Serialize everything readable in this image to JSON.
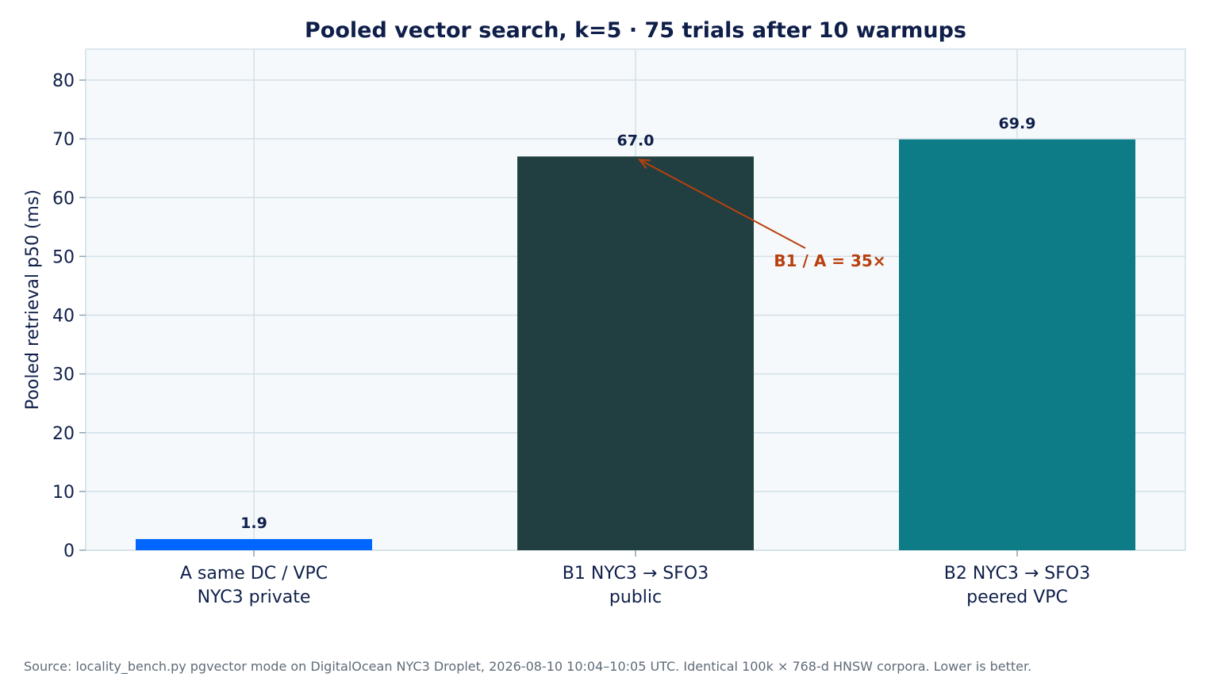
{
  "chart_data": {
    "type": "bar",
    "title": "Pooled vector search, k=5  ·  75 trials after 10 warmups",
    "ylabel": "Pooled retrieval p50 (ms)",
    "xlabel": "",
    "ylim": [
      0,
      85
    ],
    "yticks": [
      0,
      10,
      20,
      30,
      40,
      50,
      60,
      70,
      80
    ],
    "grid": true,
    "categories": [
      [
        "A  same DC / VPC",
        "NYC3 private"
      ],
      [
        "B1  NYC3 → SFO3",
        "public"
      ],
      [
        "B2  NYC3 → SFO3",
        "peered VPC"
      ]
    ],
    "values": [
      1.9,
      67.0,
      69.9
    ],
    "value_labels": [
      "1.9",
      "67.0",
      "69.9"
    ],
    "colors": [
      "#0066ff",
      "#213f40",
      "#0e7c86"
    ],
    "annotation": {
      "text": "B1 / A = 35×",
      "points_to_category": 1,
      "points_to_value": 67.0,
      "color": "#b8400e"
    }
  },
  "footer": {
    "source": "Source: locality_bench.py pgvector mode on DigitalOcean NYC3 Droplet, 2026-08-10 10:04–10:05 UTC. Identical 100k × 768-d HNSW corpora. Lower is better."
  }
}
